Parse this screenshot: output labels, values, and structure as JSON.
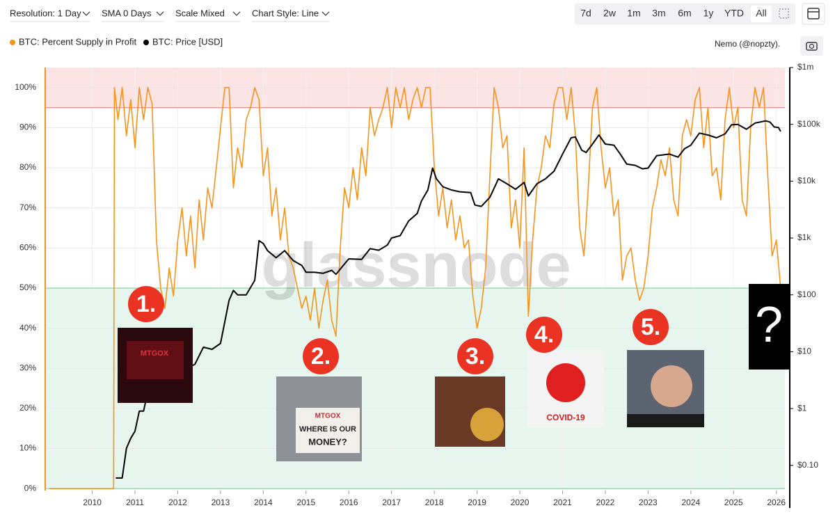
{
  "chart_data": {
    "type": "line",
    "toolbar": {
      "dropdowns": [
        "Resolution: 1 Day",
        "SMA 0 Days",
        "Scale Mixed",
        "Chart Style: Line"
      ],
      "ranges": [
        "7d",
        "2w",
        "1m",
        "3m",
        "6m",
        "1y",
        "YTD",
        "All"
      ],
      "active_range": "All"
    },
    "credit": "Nemo (@nopzty).",
    "watermark": "glassnode",
    "xlim": [
      2008.9,
      2026.2
    ],
    "xticks": [
      2010,
      2011,
      2012,
      2013,
      2014,
      2015,
      2016,
      2017,
      2018,
      2019,
      2020,
      2021,
      2022,
      2023,
      2024,
      2025,
      2026
    ],
    "ylim": [
      -0.5,
      105
    ],
    "yticks": [
      {
        "value": 0,
        "label": "0%"
      },
      {
        "value": 10,
        "label": "10%"
      },
      {
        "value": 20,
        "label": "20%"
      },
      {
        "value": 30,
        "label": "30%"
      },
      {
        "value": 40,
        "label": "40%"
      },
      {
        "value": 50,
        "label": "50%"
      },
      {
        "value": 60,
        "label": "60%"
      },
      {
        "value": 70,
        "label": "70%"
      },
      {
        "value": 80,
        "label": "80%"
      },
      {
        "value": 90,
        "label": "90%"
      },
      {
        "value": 100,
        "label": "100%"
      }
    ],
    "y2lim": [
      0.036,
      1000000
    ],
    "y2scale": "log",
    "y2ticks": [
      {
        "value": 0.1,
        "label": "$0.10"
      },
      {
        "value": 1,
        "label": "$1"
      },
      {
        "value": 10,
        "label": "$10"
      },
      {
        "value": 100,
        "label": "$100"
      },
      {
        "value": 1000,
        "label": "$1k"
      },
      {
        "value": 10000,
        "label": "$10k"
      },
      {
        "value": 100000,
        "label": "$100k"
      },
      {
        "value": 1000000,
        "label": "$1m"
      }
    ],
    "grid": true,
    "bands": [
      {
        "from": 95,
        "to": 105,
        "color": "#fde4e4",
        "line": "#ee8f8f"
      },
      {
        "from": 0,
        "to": 50,
        "color": "#e6f6ee",
        "line": "#8fd3a9"
      }
    ],
    "annotations": [
      "1.",
      "2.",
      "3.",
      "4.",
      "5.",
      "?"
    ],
    "image_texts": [
      "MTGOX",
      "MTGOX",
      "WHERE IS OUR",
      "MONEY?",
      "COVID-19"
    ],
    "series": [
      {
        "name": "BTC: Percent Supply in Profit",
        "color": "#f7931a",
        "x": [
          2009.0,
          2010.5,
          2010.52,
          2010.6,
          2010.7,
          2010.8,
          2010.9,
          2011.0,
          2011.1,
          2011.2,
          2011.3,
          2011.4,
          2011.5,
          2011.6,
          2011.7,
          2011.8,
          2011.9,
          2012.0,
          2012.1,
          2012.2,
          2012.3,
          2012.4,
          2012.5,
          2012.6,
          2012.7,
          2012.8,
          2012.9,
          2013.0,
          2013.1,
          2013.2,
          2013.3,
          2013.4,
          2013.5,
          2013.6,
          2013.7,
          2013.8,
          2013.9,
          2014.0,
          2014.1,
          2014.2,
          2014.3,
          2014.4,
          2014.5,
          2014.6,
          2014.7,
          2014.8,
          2014.9,
          2015.0,
          2015.1,
          2015.2,
          2015.3,
          2015.4,
          2015.5,
          2015.6,
          2015.7,
          2015.8,
          2015.9,
          2016.0,
          2016.1,
          2016.2,
          2016.3,
          2016.4,
          2016.5,
          2016.6,
          2016.7,
          2016.8,
          2016.9,
          2017.0,
          2017.1,
          2017.2,
          2017.3,
          2017.4,
          2017.5,
          2017.6,
          2017.7,
          2017.8,
          2017.9,
          2018.0,
          2018.1,
          2018.2,
          2018.3,
          2018.4,
          2018.5,
          2018.6,
          2018.7,
          2018.8,
          2018.9,
          2019.0,
          2019.1,
          2019.2,
          2019.3,
          2019.4,
          2019.5,
          2019.6,
          2019.7,
          2019.8,
          2019.9,
          2020.0,
          2020.1,
          2020.2,
          2020.3,
          2020.4,
          2020.5,
          2020.6,
          2020.7,
          2020.8,
          2020.9,
          2021.0,
          2021.1,
          2021.2,
          2021.3,
          2021.4,
          2021.5,
          2021.6,
          2021.7,
          2021.8,
          2021.9,
          2022.0,
          2022.1,
          2022.2,
          2022.3,
          2022.4,
          2022.5,
          2022.6,
          2022.7,
          2022.8,
          2022.9,
          2023.0,
          2023.1,
          2023.2,
          2023.3,
          2023.4,
          2023.5,
          2023.6,
          2023.7,
          2023.8,
          2023.9,
          2024.0,
          2024.1,
          2024.2,
          2024.3,
          2024.4,
          2024.5,
          2024.6,
          2024.7,
          2024.8,
          2024.9,
          2025.0,
          2025.1,
          2025.2,
          2025.3,
          2025.4,
          2025.5,
          2025.6,
          2025.7,
          2025.8,
          2025.9,
          2026.0,
          2026.1
        ],
        "values": [
          0,
          0,
          100,
          92,
          100,
          88,
          97,
          85,
          100,
          92,
          100,
          96,
          62,
          50,
          45,
          55,
          48,
          62,
          70,
          58,
          68,
          55,
          72,
          62,
          75,
          70,
          80,
          90,
          100,
          100,
          75,
          85,
          80,
          92,
          95,
          100,
          97,
          78,
          85,
          68,
          75,
          62,
          70,
          58,
          55,
          50,
          45,
          48,
          42,
          50,
          40,
          47,
          52,
          42,
          38,
          60,
          75,
          70,
          80,
          72,
          85,
          78,
          95,
          88,
          92,
          95,
          100,
          90,
          100,
          95,
          100,
          92,
          97,
          100,
          95,
          100,
          100,
          80,
          68,
          75,
          65,
          72,
          62,
          68,
          60,
          62,
          48,
          40,
          45,
          55,
          78,
          100,
          95,
          85,
          88,
          65,
          72,
          60,
          85,
          43,
          62,
          75,
          80,
          88,
          85,
          96,
          100,
          100,
          92,
          100,
          88,
          65,
          58,
          75,
          95,
          100,
          85,
          75,
          80,
          68,
          72,
          52,
          58,
          60,
          52,
          47,
          50,
          58,
          70,
          75,
          82,
          78,
          85,
          72,
          68,
          88,
          92,
          88,
          97,
          100,
          85,
          95,
          78,
          80,
          72,
          92,
          100,
          90,
          95,
          72,
          68,
          90,
          100,
          95,
          100,
          78,
          58,
          62,
          50
        ]
      },
      {
        "name": "BTC: Price [USD]",
        "color": "#000000",
        "axis": "y2",
        "x": [
          2010.55,
          2010.7,
          2010.8,
          2010.9,
          2011.0,
          2011.1,
          2011.2,
          2011.3,
          2011.4,
          2011.45,
          2011.6,
          2011.7,
          2011.9,
          2012.0,
          2012.2,
          2012.4,
          2012.6,
          2012.8,
          2013.0,
          2013.2,
          2013.3,
          2013.4,
          2013.6,
          2013.8,
          2013.9,
          2014.0,
          2014.1,
          2014.3,
          2014.5,
          2014.7,
          2014.9,
          2015.0,
          2015.2,
          2015.4,
          2015.6,
          2015.7,
          2015.9,
          2016.0,
          2016.3,
          2016.5,
          2016.7,
          2016.9,
          2017.0,
          2017.2,
          2017.4,
          2017.6,
          2017.7,
          2017.85,
          2017.96,
          2018.05,
          2018.2,
          2018.4,
          2018.6,
          2018.85,
          2018.95,
          2019.1,
          2019.3,
          2019.5,
          2019.7,
          2019.9,
          2020.1,
          2020.2,
          2020.4,
          2020.6,
          2020.8,
          2021.0,
          2021.2,
          2021.3,
          2021.45,
          2021.55,
          2021.7,
          2021.85,
          2022.0,
          2022.2,
          2022.35,
          2022.5,
          2022.7,
          2022.87,
          2023.0,
          2023.2,
          2023.5,
          2023.7,
          2023.85,
          2024.0,
          2024.2,
          2024.4,
          2024.6,
          2024.8,
          2024.95,
          2025.1,
          2025.3,
          2025.5,
          2025.75,
          2025.85,
          2025.95,
          2026.05,
          2026.1
        ],
        "values": [
          0.06,
          0.06,
          0.2,
          0.3,
          0.4,
          0.9,
          0.9,
          2,
          10,
          25,
          12,
          5,
          3,
          5,
          5,
          6,
          12,
          11,
          14,
          80,
          120,
          100,
          100,
          180,
          900,
          800,
          600,
          450,
          600,
          400,
          330,
          250,
          250,
          240,
          270,
          230,
          350,
          430,
          420,
          650,
          610,
          750,
          1000,
          1100,
          2000,
          2700,
          4500,
          7000,
          17000,
          11000,
          8000,
          7000,
          6500,
          6300,
          3800,
          3600,
          5200,
          11000,
          9000,
          7200,
          9500,
          5500,
          9000,
          11000,
          15000,
          30000,
          58000,
          60000,
          35000,
          32000,
          45000,
          65000,
          45000,
          43000,
          30000,
          20000,
          19000,
          16500,
          17000,
          28000,
          30000,
          26500,
          37000,
          43000,
          70000,
          65000,
          58000,
          68000,
          98000,
          100000,
          82000,
          105000,
          115000,
          110000,
          90000,
          88000,
          75000
        ]
      }
    ]
  }
}
